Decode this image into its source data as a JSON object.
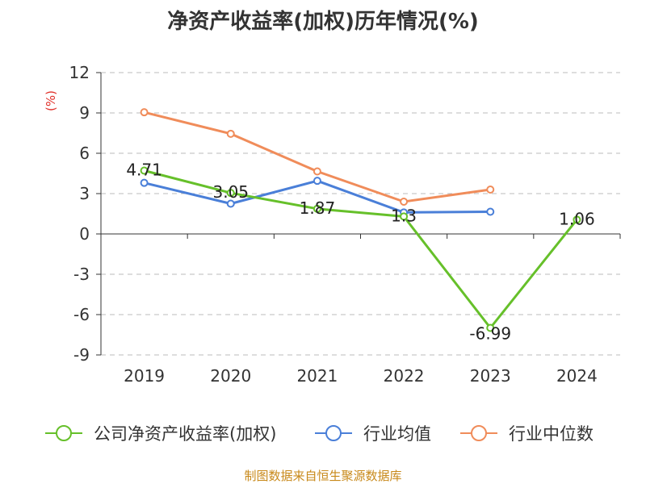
{
  "title": "净资产收益率(加权)历年情况(%)",
  "footer": "制图数据来自恒生聚源数据库",
  "colors": {
    "title": "#333333",
    "axis": "#333333",
    "grid": "#bbbbbb",
    "unit": "#e0302a",
    "footer": "#c8891a"
  },
  "chart_data": {
    "type": "line",
    "categories": [
      "2019",
      "2020",
      "2021",
      "2022",
      "2023",
      "2024"
    ],
    "ylabel": "(%)",
    "ylim": [
      -9,
      12
    ],
    "yticks": [
      12,
      9,
      6,
      3,
      0,
      -3,
      -6,
      -9
    ],
    "grid": "dashed horizontal",
    "legend_position": "bottom",
    "series": [
      {
        "name": "公司净资产收益率(加权)",
        "color": "#66c02a",
        "values": [
          4.71,
          3.05,
          1.87,
          1.3,
          -6.99,
          1.06
        ],
        "labels": [
          "4.71",
          "3.05",
          "1.87",
          "1.3",
          "-6.99",
          "1.06"
        ]
      },
      {
        "name": "行业均值",
        "color": "#4a7fd8",
        "values": [
          3.8,
          2.25,
          3.95,
          1.6,
          1.65,
          null
        ]
      },
      {
        "name": "行业中位数",
        "color": "#f08c5a",
        "values": [
          9.05,
          7.45,
          4.65,
          2.4,
          3.3,
          null
        ]
      }
    ]
  }
}
